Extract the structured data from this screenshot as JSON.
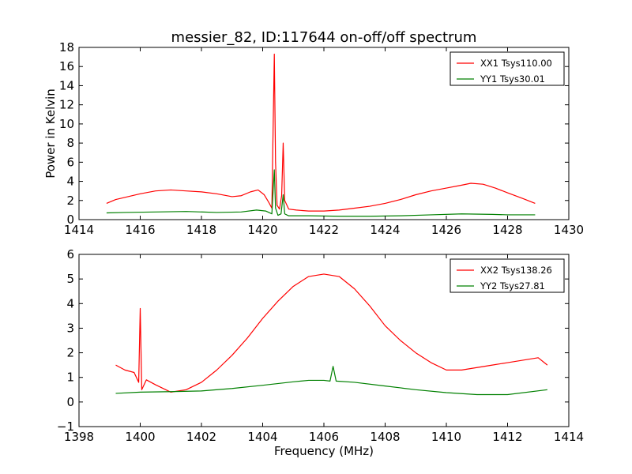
{
  "figure": {
    "title": "messier_82, ID:117644 on-off/off spectrum",
    "xlabel": "Frequency (MHz)",
    "ylabel": "Power in Kelvin"
  },
  "chart_data": [
    {
      "type": "line",
      "title": "messier_82, ID:117644 on-off/off spectrum",
      "xlabel": "",
      "ylabel": "Power in Kelvin",
      "xlim": [
        1414,
        1430
      ],
      "ylim": [
        0,
        18
      ],
      "xticks": [
        1414,
        1416,
        1418,
        1420,
        1422,
        1424,
        1426,
        1428,
        1430
      ],
      "yticks": [
        0,
        2,
        4,
        6,
        8,
        10,
        12,
        14,
        16,
        18
      ],
      "grid": false,
      "legend_position": "top-right",
      "series": [
        {
          "name": "XX1 Tsys110.00",
          "color": "#ff0000",
          "x": [
            1414.9,
            1415.2,
            1415.6,
            1416.0,
            1416.5,
            1417.0,
            1417.5,
            1418.0,
            1418.5,
            1419.0,
            1419.3,
            1419.6,
            1419.85,
            1420.05,
            1420.2,
            1420.3,
            1420.38,
            1420.42,
            1420.47,
            1420.55,
            1420.62,
            1420.67,
            1420.72,
            1420.85,
            1421.1,
            1421.5,
            1422.0,
            1422.5,
            1423.0,
            1423.5,
            1424.0,
            1424.5,
            1425.0,
            1425.5,
            1426.0,
            1426.5,
            1426.8,
            1427.2,
            1427.6,
            1428.0,
            1428.5,
            1428.9
          ],
          "y": [
            1.7,
            2.1,
            2.4,
            2.7,
            3.0,
            3.1,
            3.0,
            2.9,
            2.7,
            2.4,
            2.5,
            2.9,
            3.1,
            2.6,
            1.8,
            1.2,
            17.3,
            6.0,
            1.5,
            1.1,
            2.5,
            8.0,
            2.0,
            1.1,
            1.0,
            0.9,
            0.9,
            1.0,
            1.2,
            1.4,
            1.7,
            2.1,
            2.6,
            3.0,
            3.3,
            3.6,
            3.8,
            3.7,
            3.3,
            2.8,
            2.2,
            1.7
          ]
        },
        {
          "name": "YY1 Tsys30.01",
          "color": "#008000",
          "x": [
            1414.9,
            1415.5,
            1416.5,
            1417.5,
            1418.5,
            1419.3,
            1419.8,
            1420.1,
            1420.3,
            1420.38,
            1420.42,
            1420.5,
            1420.6,
            1420.67,
            1420.72,
            1420.85,
            1421.5,
            1422.5,
            1423.5,
            1424.5,
            1425.5,
            1426.5,
            1427.5,
            1428.0,
            1428.9
          ],
          "y": [
            0.7,
            0.75,
            0.8,
            0.85,
            0.75,
            0.8,
            1.0,
            0.9,
            0.6,
            5.2,
            1.2,
            0.45,
            0.6,
            2.6,
            0.6,
            0.4,
            0.4,
            0.35,
            0.35,
            0.4,
            0.5,
            0.6,
            0.55,
            0.5,
            0.5
          ]
        }
      ]
    },
    {
      "type": "line",
      "title": "",
      "xlabel": "Frequency (MHz)",
      "ylabel": "",
      "xlim": [
        1398,
        1414
      ],
      "ylim": [
        -1,
        6
      ],
      "xticks": [
        1398,
        1400,
        1402,
        1404,
        1406,
        1408,
        1410,
        1412,
        1414
      ],
      "yticks": [
        -1,
        0,
        1,
        2,
        3,
        4,
        5,
        6
      ],
      "grid": false,
      "legend_position": "top-right",
      "series": [
        {
          "name": "XX2 Tsys138.26",
          "color": "#ff0000",
          "x": [
            1399.2,
            1399.5,
            1399.8,
            1399.95,
            1400.0,
            1400.05,
            1400.2,
            1400.5,
            1401.0,
            1401.5,
            1402.0,
            1402.5,
            1403.0,
            1403.5,
            1404.0,
            1404.5,
            1405.0,
            1405.5,
            1406.0,
            1406.5,
            1407.0,
            1407.5,
            1408.0,
            1408.5,
            1409.0,
            1409.5,
            1410.0,
            1410.5,
            1411.0,
            1411.5,
            1412.0,
            1412.5,
            1413.0,
            1413.3
          ],
          "y": [
            1.5,
            1.3,
            1.2,
            0.8,
            3.8,
            0.5,
            0.9,
            0.7,
            0.4,
            0.5,
            0.8,
            1.3,
            1.9,
            2.6,
            3.4,
            4.1,
            4.7,
            5.1,
            5.2,
            5.1,
            4.6,
            3.9,
            3.1,
            2.5,
            2.0,
            1.6,
            1.3,
            1.3,
            1.4,
            1.5,
            1.6,
            1.7,
            1.8,
            1.5
          ]
        },
        {
          "name": "YY2 Tsys27.81",
          "color": "#008000",
          "x": [
            1399.2,
            1400.0,
            1401.0,
            1402.0,
            1403.0,
            1404.0,
            1405.0,
            1405.5,
            1406.0,
            1406.2,
            1406.3,
            1406.4,
            1407.0,
            1408.0,
            1409.0,
            1410.0,
            1411.0,
            1412.0,
            1413.3
          ],
          "y": [
            0.35,
            0.4,
            0.42,
            0.45,
            0.55,
            0.68,
            0.82,
            0.88,
            0.88,
            0.85,
            1.45,
            0.85,
            0.8,
            0.65,
            0.5,
            0.38,
            0.3,
            0.3,
            0.5
          ]
        }
      ]
    }
  ]
}
